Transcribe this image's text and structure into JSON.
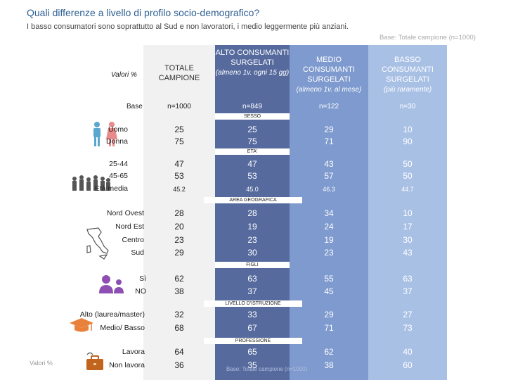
{
  "title": "Quali differenze a livello di profilo socio-demografico?",
  "subtitle": "I basso consumatori sono soprattutto al Sud e non lavoratori, i medio leggermente più anziani.",
  "base_note": "Base: Totale campione (n=1000)",
  "valori_label": "Valori %",
  "valori_bottom": "Valori %",
  "watermark": "Base: Totale campione (n=1000)",
  "columns": {
    "tot": {
      "label": "TOTALE CAMPIONE",
      "base": "n=1000"
    },
    "alto": {
      "label": "ALTO CONSUMANTI SURGELATI",
      "note": "(almeno 1v. ogni 15 gg)",
      "base": "n=849"
    },
    "medio": {
      "label": "MEDIO CONSUMANTI SURGELATI",
      "note": "(almeno 1v. al mese)",
      "base": "n=122"
    },
    "basso": {
      "label": "BASSO CONSUMANTI SURGELATI",
      "note": "(più raramente)",
      "base": "n=30"
    }
  },
  "base_label": "Base",
  "sections": {
    "sesso": "SESSO",
    "eta": "ETA'",
    "area": "AREA GEOGRAFICA",
    "figli": "FIGLI",
    "istruzione": "LIVELLO D'ISTRUZIONE",
    "professione": "PROFESSIONE"
  },
  "rows": {
    "uomo": {
      "label": "Uomo",
      "tot": "25",
      "alto": "25",
      "medio": "29",
      "basso": "10"
    },
    "donna": {
      "label": "Donna",
      "tot": "75",
      "alto": "75",
      "medio": "71",
      "basso": "90"
    },
    "e2544": {
      "label": "25-44",
      "tot": "47",
      "alto": "47",
      "medio": "43",
      "basso": "50"
    },
    "e4565": {
      "label": "45-65",
      "tot": "53",
      "alto": "53",
      "medio": "57",
      "basso": "50"
    },
    "eta_media": {
      "label": "Età media",
      "tot": "45.2",
      "alto": "45.0",
      "medio": "46.3",
      "basso": "44.7"
    },
    "nordovest": {
      "label": "Nord Ovest",
      "tot": "28",
      "alto": "28",
      "medio": "34",
      "basso": "10"
    },
    "nordest": {
      "label": "Nord Est",
      "tot": "20",
      "alto": "19",
      "medio": "24",
      "basso": "17"
    },
    "centro": {
      "label": "Centro",
      "tot": "23",
      "alto": "23",
      "medio": "19",
      "basso": "30"
    },
    "sud": {
      "label": "Sud",
      "tot": "29",
      "alto": "30",
      "medio": "23",
      "basso": "43"
    },
    "si": {
      "label": "Sì",
      "tot": "62",
      "alto": "63",
      "medio": "55",
      "basso": "63"
    },
    "no": {
      "label": "NO",
      "tot": "38",
      "alto": "37",
      "medio": "45",
      "basso": "37"
    },
    "alto_ist": {
      "label": "Alto (laurea/master)",
      "tot": "32",
      "alto": "33",
      "medio": "29",
      "basso": "27"
    },
    "medio_basso": {
      "label": "Medio/ Basso",
      "tot": "68",
      "alto": "67",
      "medio": "71",
      "basso": "73"
    },
    "lavora": {
      "label": "Lavora",
      "tot": "64",
      "alto": "65",
      "medio": "62",
      "basso": "40"
    },
    "nonlavora": {
      "label": "Non lavora",
      "tot": "36",
      "alto": "35",
      "medio": "38",
      "basso": "60"
    }
  },
  "colors": {
    "alto": "#566a9e",
    "medio": "#7e9ace",
    "basso": "#a9c0e5",
    "title": "#2e5f93",
    "icon_purple": "#8e4fb3"
  }
}
